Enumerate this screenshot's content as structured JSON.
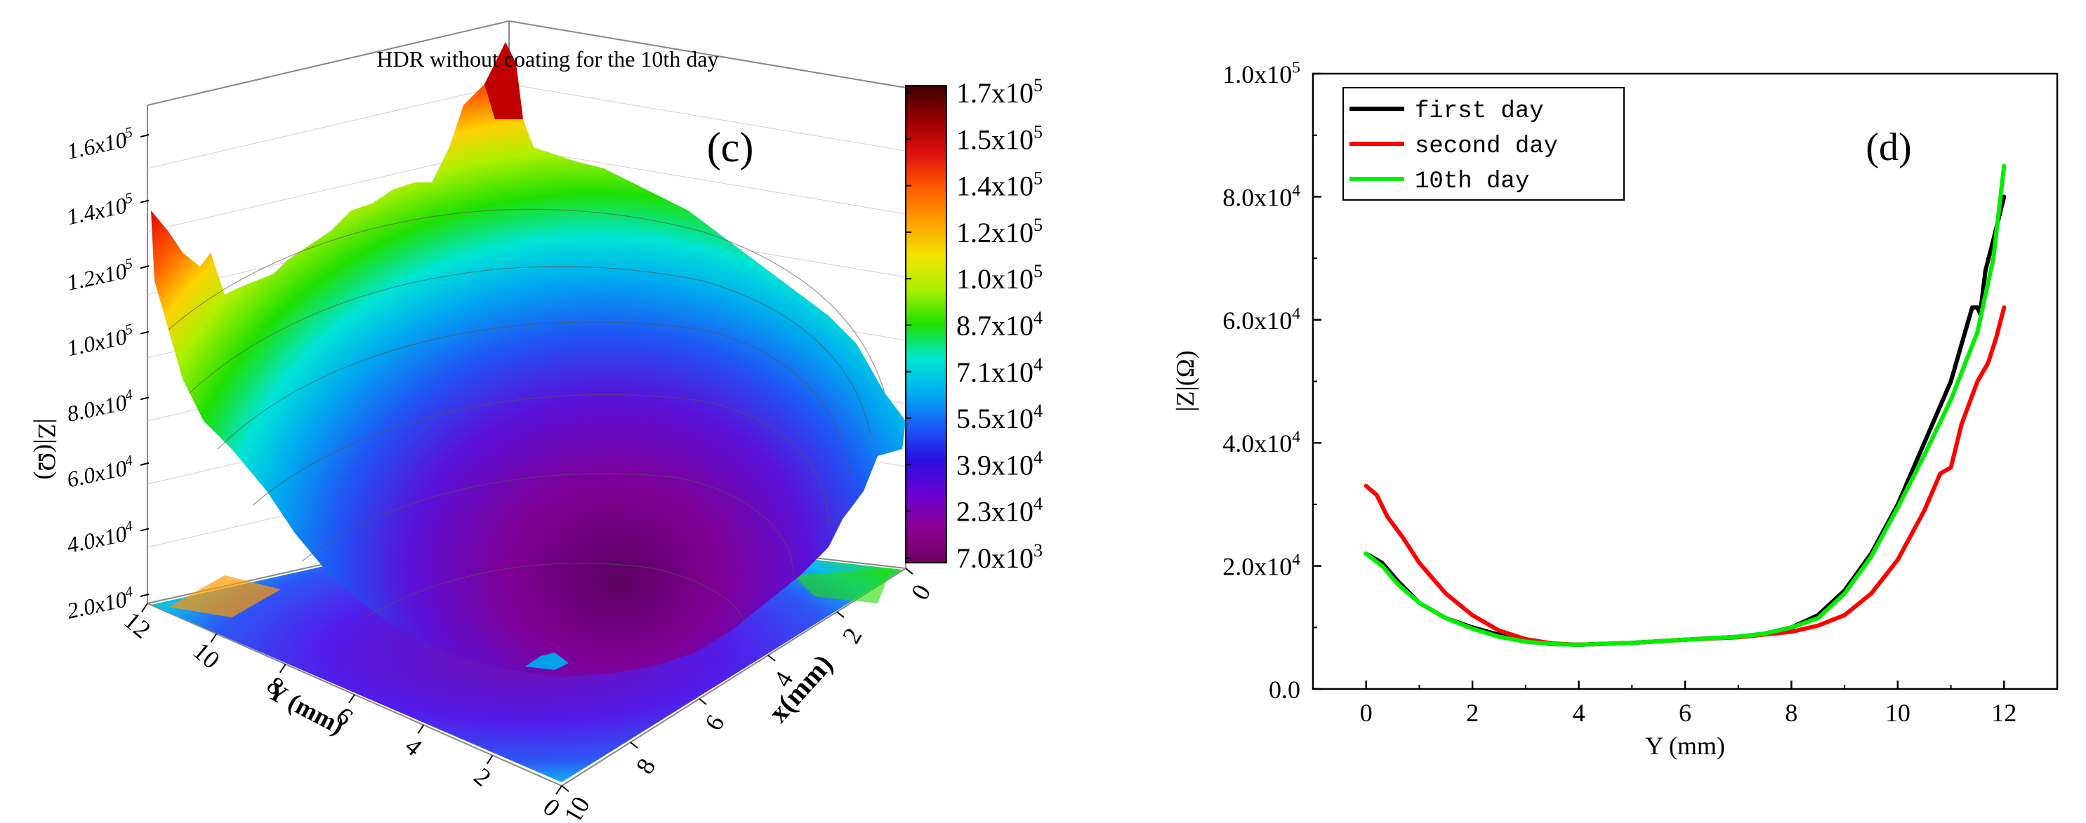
{
  "chart_data": [
    {
      "type": "surface3d",
      "panel_label": "(c)",
      "title": "HDR without coating for the 10th day",
      "zlabel": "|Z|(Ω)",
      "xlabel": "x(mm)",
      "ylabel": "Y (mm)",
      "z_ticks": [
        {
          "value": 20000,
          "text": "2.0x10",
          "exp": "4"
        },
        {
          "value": 40000,
          "text": "4.0x10",
          "exp": "4"
        },
        {
          "value": 60000,
          "text": "6.0x10",
          "exp": "4"
        },
        {
          "value": 80000,
          "text": "8.0x10",
          "exp": "4"
        },
        {
          "value": 100000,
          "text": "1.0x10",
          "exp": "5"
        },
        {
          "value": 120000,
          "text": "1.2x10",
          "exp": "5"
        },
        {
          "value": 140000,
          "text": "1.4x10",
          "exp": "5"
        },
        {
          "value": 160000,
          "text": "1.6x10",
          "exp": "5"
        }
      ],
      "y_ticks": [
        "12",
        "10",
        "8",
        "6",
        "4",
        "2",
        "0"
      ],
      "x_ticks": [
        "0",
        "2",
        "4",
        "6",
        "8",
        "10"
      ],
      "colorbar": {
        "ticks": [
          {
            "text": "1.7x10",
            "exp": "5"
          },
          {
            "text": "1.5x10",
            "exp": "5"
          },
          {
            "text": "1.4x10",
            "exp": "5"
          },
          {
            "text": "1.2x10",
            "exp": "5"
          },
          {
            "text": "1.0x10",
            "exp": "5"
          },
          {
            "text": "8.7x10",
            "exp": "4"
          },
          {
            "text": "7.1x10",
            "exp": "4"
          },
          {
            "text": "5.5x10",
            "exp": "4"
          },
          {
            "text": "3.9x10",
            "exp": "4"
          },
          {
            "text": "2.3x10",
            "exp": "4"
          },
          {
            "text": "7.0x10",
            "exp": "3"
          }
        ],
        "colors": [
          "#3a0000",
          "#9a0000",
          "#e01010",
          "#ff5a00",
          "#ffa000",
          "#f2e400",
          "#a8f000",
          "#1ee000",
          "#00e8d0",
          "#00b0f0",
          "#1a5af8",
          "#2a10e0",
          "#6a00d0",
          "#8a0090",
          "#6e0060"
        ]
      }
    },
    {
      "type": "line",
      "panel_label": "(d)",
      "xlabel": "Y (mm)",
      "ylabel": "|Z|(Ω)",
      "xlim": [
        -1,
        13
      ],
      "ylim": [
        0,
        100000
      ],
      "x_ticks": [
        0,
        2,
        4,
        6,
        8,
        10,
        12
      ],
      "y_ticks": [
        {
          "value": 0,
          "text": "0.0",
          "exp": ""
        },
        {
          "value": 20000,
          "text": "2.0x10",
          "exp": "4"
        },
        {
          "value": 40000,
          "text": "4.0x10",
          "exp": "4"
        },
        {
          "value": 60000,
          "text": "6.0x10",
          "exp": "4"
        },
        {
          "value": 80000,
          "text": "8.0x10",
          "exp": "4"
        },
        {
          "value": 100000,
          "text": "1.0x10",
          "exp": "5"
        }
      ],
      "legend_position": "top-left",
      "series": [
        {
          "name": "first day",
          "color": "#000000",
          "points": [
            [
              0,
              22000
            ],
            [
              0.3,
              20500
            ],
            [
              0.6,
              17500
            ],
            [
              1,
              14000
            ],
            [
              1.5,
              11500
            ],
            [
              2,
              10000
            ],
            [
              2.5,
              8800
            ],
            [
              3,
              7800
            ],
            [
              3.5,
              7300
            ],
            [
              4,
              7200
            ],
            [
              5,
              7500
            ],
            [
              6,
              8000
            ],
            [
              7,
              8500
            ],
            [
              7.5,
              9000
            ],
            [
              8,
              10000
            ],
            [
              8.5,
              12000
            ],
            [
              9,
              16000
            ],
            [
              9.5,
              22000
            ],
            [
              10,
              30000
            ],
            [
              10.5,
              40000
            ],
            [
              11,
              50000
            ],
            [
              11.2,
              56000
            ],
            [
              11.4,
              62000
            ],
            [
              11.5,
              62000
            ],
            [
              11.55,
              61000
            ],
            [
              11.65,
              68000
            ],
            [
              11.8,
              73000
            ],
            [
              12,
              80000
            ]
          ]
        },
        {
          "name": "second day",
          "color": "#ff0000",
          "points": [
            [
              0,
              33000
            ],
            [
              0.2,
              31500
            ],
            [
              0.4,
              28000
            ],
            [
              0.7,
              24500
            ],
            [
              1,
              20500
            ],
            [
              1.5,
              15500
            ],
            [
              2,
              12000
            ],
            [
              2.5,
              9500
            ],
            [
              3,
              8100
            ],
            [
              3.5,
              7400
            ],
            [
              4,
              7200
            ],
            [
              5,
              7500
            ],
            [
              6,
              8000
            ],
            [
              7,
              8400
            ],
            [
              8,
              9300
            ],
            [
              8.5,
              10300
            ],
            [
              9,
              12000
            ],
            [
              9.5,
              15500
            ],
            [
              10,
              21000
            ],
            [
              10.5,
              29000
            ],
            [
              10.8,
              35000
            ],
            [
              11,
              36000
            ],
            [
              11.2,
              43000
            ],
            [
              11.5,
              50000
            ],
            [
              11.7,
              53000
            ],
            [
              11.85,
              57000
            ],
            [
              12,
              62000
            ]
          ]
        },
        {
          "name": "10th day",
          "color": "#00ee00",
          "points": [
            [
              0,
              22000
            ],
            [
              0.3,
              20000
            ],
            [
              0.6,
              17000
            ],
            [
              1,
              14000
            ],
            [
              1.5,
              11500
            ],
            [
              2,
              9800
            ],
            [
              2.5,
              8500
            ],
            [
              3,
              7700
            ],
            [
              3.5,
              7300
            ],
            [
              4,
              7200
            ],
            [
              5,
              7500
            ],
            [
              6,
              8000
            ],
            [
              7,
              8500
            ],
            [
              7.5,
              9000
            ],
            [
              8,
              10000
            ],
            [
              8.5,
              11500
            ],
            [
              9,
              15500
            ],
            [
              9.5,
              21500
            ],
            [
              10,
              29500
            ],
            [
              10.5,
              38000
            ],
            [
              11,
              47000
            ],
            [
              11.5,
              58000
            ],
            [
              11.8,
              70000
            ],
            [
              12,
              85000
            ]
          ]
        }
      ]
    }
  ]
}
